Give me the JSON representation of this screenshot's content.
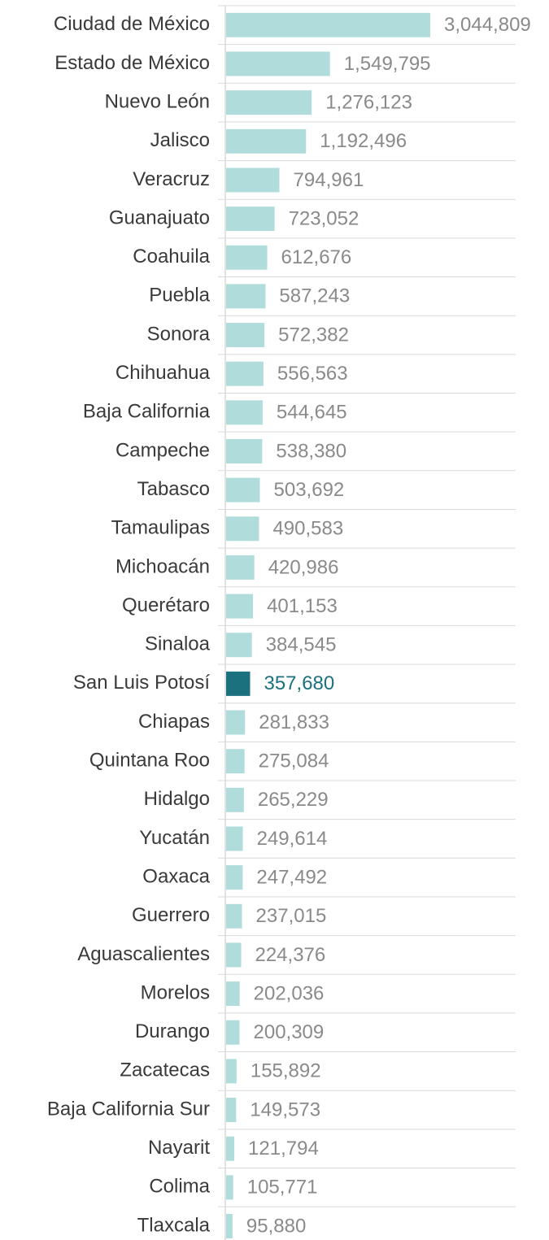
{
  "chart_data": {
    "type": "bar",
    "orientation": "horizontal",
    "categories": [
      "Ciudad de México",
      "Estado de México",
      "Nuevo León",
      "Jalisco",
      "Veracruz",
      "Guanajuato",
      "Coahuila",
      "Puebla",
      "Sonora",
      "Chihuahua",
      "Baja California",
      "Campeche",
      "Tabasco",
      "Tamaulipas",
      "Michoacán",
      "Querétaro",
      "Sinaloa",
      "San Luis Potosí",
      "Chiapas",
      "Quintana Roo",
      "Hidalgo",
      "Yucatán",
      "Oaxaca",
      "Guerrero",
      "Aguascalientes",
      "Morelos",
      "Durango",
      "Zacatecas",
      "Baja California Sur",
      "Nayarit",
      "Colima",
      "Tlaxcala"
    ],
    "values": [
      3044809,
      1549795,
      1276123,
      1192496,
      794961,
      723052,
      612676,
      587243,
      572382,
      556563,
      544645,
      538380,
      503692,
      490583,
      420986,
      401153,
      384545,
      357680,
      281833,
      275084,
      265229,
      249614,
      247492,
      237015,
      224376,
      202036,
      200309,
      155892,
      149573,
      121794,
      105771,
      95880
    ],
    "value_labels": [
      "3,044,809",
      "1,549,795",
      "1,276,123",
      "1,192,496",
      "794,961",
      "723,052",
      "612,676",
      "587,243",
      "572,382",
      "556,563",
      "544,645",
      "538,380",
      "503,692",
      "490,583",
      "420,986",
      "401,153",
      "384,545",
      "357,680",
      "281,833",
      "275,084",
      "265,229",
      "249,614",
      "247,492",
      "237,015",
      "224,376",
      "202,036",
      "200,309",
      "155,892",
      "149,573",
      "121,794",
      "105,771",
      "95,880"
    ],
    "colors": [
      "#b0dddc",
      "#b0dddc",
      "#b0dddc",
      "#b0dddc",
      "#b0dddc",
      "#b0dddc",
      "#b0dddc",
      "#b0dddc",
      "#b0dddc",
      "#b0dddc",
      "#b0dddc",
      "#b0dddc",
      "#b0dddc",
      "#b0dddc",
      "#b0dddc",
      "#b0dddc",
      "#b0dddc",
      "#1b717e",
      "#b0dddc",
      "#b0dddc",
      "#b0dddc",
      "#b0dddc",
      "#b0dddc",
      "#b0dddc",
      "#b0dddc",
      "#b0dddc",
      "#b0dddc",
      "#b0dddc",
      "#b0dddc",
      "#b0dddc",
      "#b0dddc",
      "#b0dddc"
    ]
  }
}
